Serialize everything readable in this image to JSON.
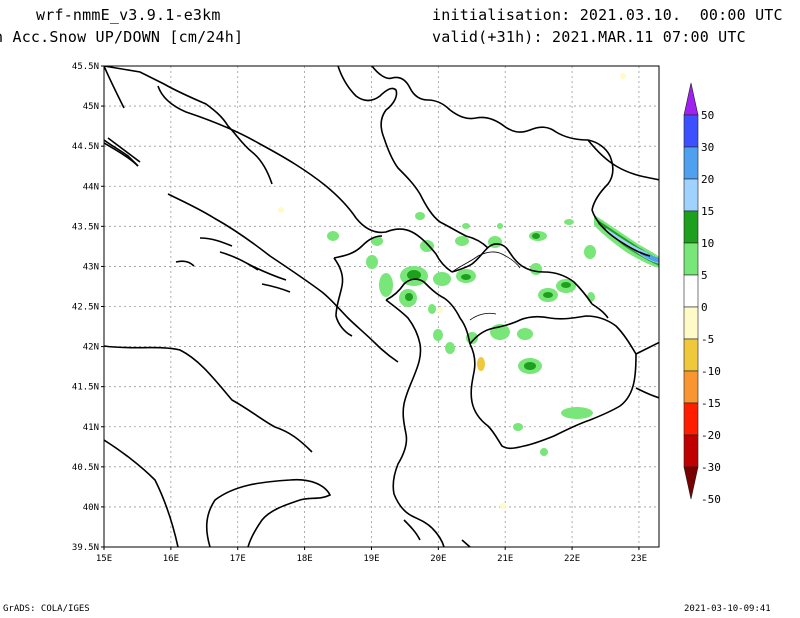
{
  "header": {
    "model": "wrf-nmmE_v3.9.1-e3km",
    "field": "n Acc.Snow UP/DOWN [cm/24h]",
    "init": "initialisation: 2021.03.10.  00:00 UTC",
    "valid": "valid(+31h): 2021.MAR.11 07:00 UTC"
  },
  "footer": {
    "credit": "GrADS: COLA/IGES",
    "timestamp": "2021-03-10-09:41"
  },
  "map": {
    "lat_labels": [
      "45.5N",
      "45N",
      "44.5N",
      "44N",
      "43.5N",
      "43N",
      "42.5N",
      "42N",
      "41.5N",
      "41N",
      "40.5N",
      "40N",
      "39.5N"
    ],
    "lon_labels": [
      "15E",
      "16E",
      "17E",
      "18E",
      "19E",
      "20E",
      "21E",
      "22E",
      "23E"
    ],
    "lon_range": [
      15.0,
      23.3
    ],
    "lat_range": [
      39.5,
      45.5
    ],
    "grid": true
  },
  "colorbar": {
    "labels": [
      "50",
      "30",
      "20",
      "15",
      "10",
      "5",
      "0",
      "-5",
      "-10",
      "-15",
      "-20",
      "-30",
      "-50"
    ],
    "colors": {
      "over_50": "#a020f0",
      "30_50": "#3c50ff",
      "20_30": "#50a0f0",
      "15_20": "#a0d2ff",
      "10_15": "#1ea01e",
      "5_10": "#78e678",
      "m5_5": "#ffffff",
      "m10_m5": "#fffac8",
      "m15_m10": "#f0c83c",
      "m20_m15": "#fa9632",
      "m30_m20": "#ff1e00",
      "m50_m30": "#c00000",
      "under_m50": "#780000"
    }
  }
}
